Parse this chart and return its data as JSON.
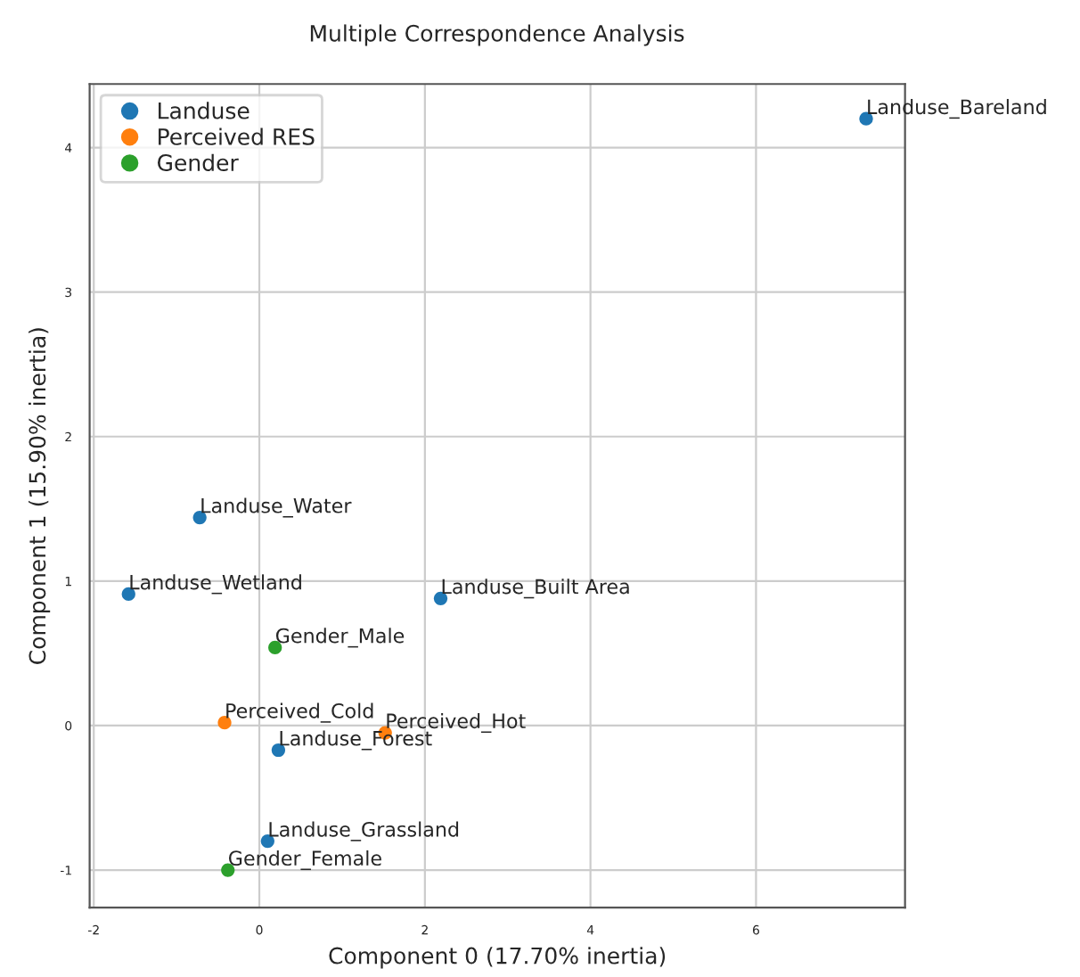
{
  "chart_data": {
    "type": "scatter",
    "title": "Multiple Correspondence Analysis",
    "xlabel": "Component 0 (17.70% inertia)",
    "ylabel": "Component 1 (15.90% inertia)",
    "series": [
      {
        "name": "Landuse",
        "color": "#1f77b4",
        "x": [
          7.33,
          -0.72,
          -1.58,
          2.19,
          0.23,
          0.1
        ],
        "values": [
          4.2,
          1.44,
          0.91,
          0.88,
          -0.17,
          -0.8
        ]
      },
      {
        "name": "Perceived RES",
        "color": "#ff7f0e",
        "x": [
          -0.42,
          1.52
        ],
        "values": [
          0.02,
          -0.05
        ]
      },
      {
        "name": "Gender",
        "color": "#2ca02c",
        "x": [
          0.19,
          -0.38
        ],
        "values": [
          0.54,
          -1.0
        ]
      }
    ],
    "annotations": [
      {
        "text": "Landuse_Bareland",
        "x": 7.33,
        "y": 4.2
      },
      {
        "text": "Landuse_Water",
        "x": -0.72,
        "y": 1.44
      },
      {
        "text": "Landuse_Wetland",
        "x": -1.58,
        "y": 0.91
      },
      {
        "text": "Landuse_Built Area",
        "x": 2.19,
        "y": 0.88
      },
      {
        "text": "Landuse_Forest",
        "x": 0.23,
        "y": -0.17
      },
      {
        "text": "Landuse_Grassland",
        "x": 0.1,
        "y": -0.8
      },
      {
        "text": "Perceived_Cold",
        "x": -0.42,
        "y": 0.02
      },
      {
        "text": "Perceived_Hot",
        "x": 1.52,
        "y": -0.05
      },
      {
        "text": "Gender_Male",
        "x": 0.19,
        "y": 0.54
      },
      {
        "text": "Gender_Female",
        "x": -0.38,
        "y": -1.0
      }
    ],
    "xlim": [
      -2.05,
      7.8
    ],
    "ylim": [
      -1.26,
      4.44
    ],
    "xticks": [
      -2,
      0,
      2,
      4,
      6
    ],
    "yticks": [
      -1,
      0,
      1,
      2,
      3,
      4
    ],
    "grid": true,
    "legend": "top left",
    "marker": "circle"
  }
}
